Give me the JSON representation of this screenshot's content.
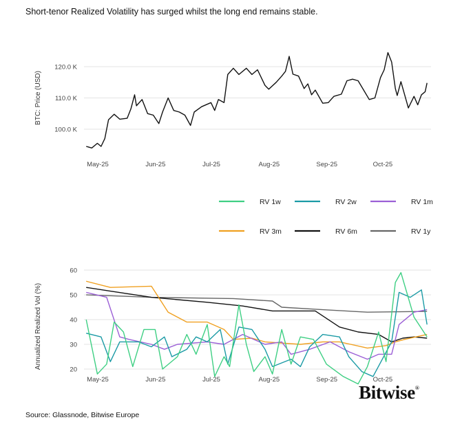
{
  "title": "Short-tenor Realized Volatility has surged whilst the long end remains stable.",
  "source": "Source: Glassnode, Bitwise Europe",
  "logo": "Bitwise",
  "chart_data": [
    {
      "type": "line",
      "ylabel": "BTC: Price (USD)",
      "ylim": [
        92,
        126
      ],
      "y_ticks": [
        {
          "value": 100,
          "label": "100.0 K"
        },
        {
          "value": 110,
          "label": "110.0 K"
        },
        {
          "value": 120,
          "label": "120.0 K"
        }
      ],
      "x_ticks": [
        {
          "date": "2025-05-01",
          "label": "May-25"
        },
        {
          "date": "2025-06-01",
          "label": "Jun-25"
        },
        {
          "date": "2025-07-01",
          "label": "Jul-25"
        },
        {
          "date": "2025-08-01",
          "label": "Aug-25"
        },
        {
          "date": "2025-09-01",
          "label": "Sep-25"
        },
        {
          "date": "2025-10-01",
          "label": "Oct-25"
        }
      ],
      "grid": "horizontal",
      "series": [
        {
          "color": "#111111",
          "points": [
            [
              "2025-04-27",
              94.5
            ],
            [
              "2025-04-30",
              94
            ],
            [
              "2025-05-03",
              95.5
            ],
            [
              "2025-05-05",
              94.5
            ],
            [
              "2025-05-07",
              97
            ],
            [
              "2025-05-09",
              103
            ],
            [
              "2025-05-12",
              104.8
            ],
            [
              "2025-05-15",
              103.2
            ],
            [
              "2025-05-19",
              103.5
            ],
            [
              "2025-05-21",
              106.5
            ],
            [
              "2025-05-23",
              111
            ],
            [
              "2025-05-24",
              107.5
            ],
            [
              "2025-05-27",
              109.5
            ],
            [
              "2025-05-30",
              105
            ],
            [
              "2025-06-02",
              104.5
            ],
            [
              "2025-06-05",
              101.8
            ],
            [
              "2025-06-07",
              105.5
            ],
            [
              "2025-06-10",
              110
            ],
            [
              "2025-06-13",
              106
            ],
            [
              "2025-06-16",
              105.5
            ],
            [
              "2025-06-19",
              104.5
            ],
            [
              "2025-06-22",
              101.2
            ],
            [
              "2025-06-24",
              105.5
            ],
            [
              "2025-06-28",
              107.2
            ],
            [
              "2025-07-03",
              108.5
            ],
            [
              "2025-07-05",
              106
            ],
            [
              "2025-07-07",
              109.5
            ],
            [
              "2025-07-10",
              108.5
            ],
            [
              "2025-07-12",
              117.5
            ],
            [
              "2025-07-15",
              119.5
            ],
            [
              "2025-07-18",
              117.5
            ],
            [
              "2025-07-22",
              119.5
            ],
            [
              "2025-07-25",
              117.5
            ],
            [
              "2025-07-28",
              119
            ],
            [
              "2025-08-01",
              114
            ],
            [
              "2025-08-03",
              112.8
            ],
            [
              "2025-08-07",
              115
            ],
            [
              "2025-08-10",
              117
            ],
            [
              "2025-08-12",
              118.5
            ],
            [
              "2025-08-14",
              123.3
            ],
            [
              "2025-08-16",
              117.6
            ],
            [
              "2025-08-19",
              117
            ],
            [
              "2025-08-22",
              113
            ],
            [
              "2025-08-24",
              114.5
            ],
            [
              "2025-08-26",
              111
            ],
            [
              "2025-08-28",
              112.5
            ],
            [
              "2025-09-01",
              108.3
            ],
            [
              "2025-09-04",
              108.5
            ],
            [
              "2025-09-07",
              110.5
            ],
            [
              "2025-09-11",
              111.2
            ],
            [
              "2025-09-14",
              115.5
            ],
            [
              "2025-09-17",
              116
            ],
            [
              "2025-09-20",
              115.5
            ],
            [
              "2025-09-23",
              112.5
            ],
            [
              "2025-09-26",
              109.5
            ],
            [
              "2025-09-29",
              110
            ],
            [
              "2025-10-02",
              116.5
            ],
            [
              "2025-10-04",
              119
            ],
            [
              "2025-10-06",
              124.5
            ],
            [
              "2025-10-08",
              121.5
            ],
            [
              "2025-10-10",
              113
            ],
            [
              "2025-10-11",
              110.8
            ],
            [
              "2025-10-13",
              115.2
            ],
            [
              "2025-10-17",
              106.8
            ],
            [
              "2025-10-20",
              110.5
            ],
            [
              "2025-10-22",
              107.8
            ],
            [
              "2025-10-24",
              111
            ],
            [
              "2025-10-26",
              112
            ],
            [
              "2025-10-27",
              114.8
            ]
          ]
        }
      ]
    },
    {
      "type": "line",
      "ylabel": "Annualized Realized Vol (%)",
      "ylim": [
        12,
        62
      ],
      "y_ticks": [
        {
          "value": 20,
          "label": "20"
        },
        {
          "value": 30,
          "label": "30"
        },
        {
          "value": 40,
          "label": "40"
        },
        {
          "value": 50,
          "label": "50"
        },
        {
          "value": 60,
          "label": "60"
        }
      ],
      "x_ticks": [
        {
          "date": "2025-05-01",
          "label": "May-25"
        },
        {
          "date": "2025-06-01",
          "label": "Jun-25"
        },
        {
          "date": "2025-07-01",
          "label": "Jul-25"
        },
        {
          "date": "2025-08-01",
          "label": "Aug-25"
        },
        {
          "date": "2025-09-01",
          "label": "Sep-25"
        },
        {
          "date": "2025-10-01",
          "label": "Oct-25"
        }
      ],
      "grid": "horizontal",
      "legend": "top",
      "series": [
        {
          "name": "RV 1y",
          "color": "#666666",
          "points": [
            [
              "2025-04-27",
              50
            ],
            [
              "2025-06-01",
              49
            ],
            [
              "2025-07-15",
              48.5
            ],
            [
              "2025-08-05",
              47.5
            ],
            [
              "2025-08-10",
              45
            ],
            [
              "2025-09-01",
              44
            ],
            [
              "2025-09-25",
              43
            ],
            [
              "2025-10-27",
              43.3
            ]
          ]
        },
        {
          "name": "RV 6m",
          "color": "#111111",
          "points": [
            [
              "2025-04-27",
              53
            ],
            [
              "2025-05-10",
              51.5
            ],
            [
              "2025-06-01",
              49
            ],
            [
              "2025-07-01",
              47
            ],
            [
              "2025-07-20",
              45.5
            ],
            [
              "2025-08-05",
              43.5
            ],
            [
              "2025-08-28",
              43.5
            ],
            [
              "2025-09-10",
              37
            ],
            [
              "2025-09-20",
              35
            ],
            [
              "2025-10-01",
              34
            ],
            [
              "2025-10-08",
              31
            ],
            [
              "2025-10-14",
              32.5
            ],
            [
              "2025-10-20",
              33
            ],
            [
              "2025-10-27",
              32.5
            ]
          ]
        },
        {
          "name": "RV 3m",
          "color": "#f0a020",
          "points": [
            [
              "2025-04-27",
              55.5
            ],
            [
              "2025-05-10",
              53
            ],
            [
              "2025-06-01",
              53.5
            ],
            [
              "2025-06-10",
              43
            ],
            [
              "2025-06-20",
              39
            ],
            [
              "2025-07-01",
              39
            ],
            [
              "2025-07-10",
              36
            ],
            [
              "2025-07-15",
              32
            ],
            [
              "2025-07-25",
              32.5
            ],
            [
              "2025-08-01",
              31
            ],
            [
              "2025-08-20",
              30
            ],
            [
              "2025-09-01",
              31
            ],
            [
              "2025-09-10",
              31
            ],
            [
              "2025-09-25",
              28.5
            ],
            [
              "2025-10-05",
              29.5
            ],
            [
              "2025-10-10",
              31
            ],
            [
              "2025-10-15",
              32
            ],
            [
              "2025-10-27",
              34
            ]
          ]
        },
        {
          "name": "RV 1m",
          "color": "#9b5fd6",
          "points": [
            [
              "2025-04-27",
              51
            ],
            [
              "2025-05-08",
              49
            ],
            [
              "2025-05-15",
              33
            ],
            [
              "2025-05-20",
              32
            ],
            [
              "2025-06-01",
              30
            ],
            [
              "2025-06-08",
              28
            ],
            [
              "2025-06-15",
              30
            ],
            [
              "2025-07-01",
              31
            ],
            [
              "2025-07-10",
              30
            ],
            [
              "2025-07-20",
              34
            ],
            [
              "2025-08-01",
              30
            ],
            [
              "2025-08-10",
              31
            ],
            [
              "2025-08-15",
              26
            ],
            [
              "2025-08-25",
              28
            ],
            [
              "2025-09-05",
              31
            ],
            [
              "2025-09-15",
              27
            ],
            [
              "2025-09-25",
              24
            ],
            [
              "2025-10-01",
              26
            ],
            [
              "2025-10-08",
              26
            ],
            [
              "2025-10-12",
              38
            ],
            [
              "2025-10-20",
              43
            ],
            [
              "2025-10-27",
              44
            ]
          ]
        },
        {
          "name": "RV 2w",
          "color": "#1a9aa5",
          "points": [
            [
              "2025-04-27",
              34.5
            ],
            [
              "2025-05-05",
              33
            ],
            [
              "2025-05-10",
              23
            ],
            [
              "2025-05-15",
              31
            ],
            [
              "2025-05-25",
              31
            ],
            [
              "2025-06-01",
              29
            ],
            [
              "2025-06-08",
              33
            ],
            [
              "2025-06-12",
              25
            ],
            [
              "2025-06-20",
              28
            ],
            [
              "2025-06-25",
              33
            ],
            [
              "2025-07-01",
              31
            ],
            [
              "2025-07-08",
              36
            ],
            [
              "2025-07-12",
              22
            ],
            [
              "2025-07-18",
              37
            ],
            [
              "2025-07-25",
              36
            ],
            [
              "2025-08-01",
              28
            ],
            [
              "2025-08-05",
              21
            ],
            [
              "2025-08-15",
              24
            ],
            [
              "2025-08-20",
              21
            ],
            [
              "2025-08-25",
              29
            ],
            [
              "2025-09-01",
              34
            ],
            [
              "2025-09-10",
              33
            ],
            [
              "2025-09-15",
              25
            ],
            [
              "2025-09-22",
              19
            ],
            [
              "2025-09-28",
              17
            ],
            [
              "2025-10-03",
              24
            ],
            [
              "2025-10-08",
              31
            ],
            [
              "2025-10-12",
              51
            ],
            [
              "2025-10-18",
              49
            ],
            [
              "2025-10-24",
              52
            ],
            [
              "2025-10-27",
              38
            ]
          ]
        },
        {
          "name": "RV 1w",
          "color": "#3ecf83",
          "points": [
            [
              "2025-04-27",
              40
            ],
            [
              "2025-05-03",
              18
            ],
            [
              "2025-05-08",
              22
            ],
            [
              "2025-05-12",
              39
            ],
            [
              "2025-05-17",
              35
            ],
            [
              "2025-05-22",
              21
            ],
            [
              "2025-05-28",
              36
            ],
            [
              "2025-06-03",
              36
            ],
            [
              "2025-06-07",
              20
            ],
            [
              "2025-06-15",
              25
            ],
            [
              "2025-06-20",
              34
            ],
            [
              "2025-06-25",
              26
            ],
            [
              "2025-07-01",
              38
            ],
            [
              "2025-07-05",
              17
            ],
            [
              "2025-07-10",
              25
            ],
            [
              "2025-07-13",
              21
            ],
            [
              "2025-07-18",
              46
            ],
            [
              "2025-07-22",
              30
            ],
            [
              "2025-07-26",
              19
            ],
            [
              "2025-08-01",
              25
            ],
            [
              "2025-08-05",
              18
            ],
            [
              "2025-08-10",
              36
            ],
            [
              "2025-08-15",
              22
            ],
            [
              "2025-08-20",
              33
            ],
            [
              "2025-08-27",
              32
            ],
            [
              "2025-09-03",
              22
            ],
            [
              "2025-09-12",
              17
            ],
            [
              "2025-09-20",
              14
            ],
            [
              "2025-09-25",
              21
            ],
            [
              "2025-10-01",
              35
            ],
            [
              "2025-10-05",
              23
            ],
            [
              "2025-10-10",
              55
            ],
            [
              "2025-10-13",
              59
            ],
            [
              "2025-10-20",
              41
            ],
            [
              "2025-10-27",
              33
            ]
          ]
        }
      ]
    }
  ]
}
